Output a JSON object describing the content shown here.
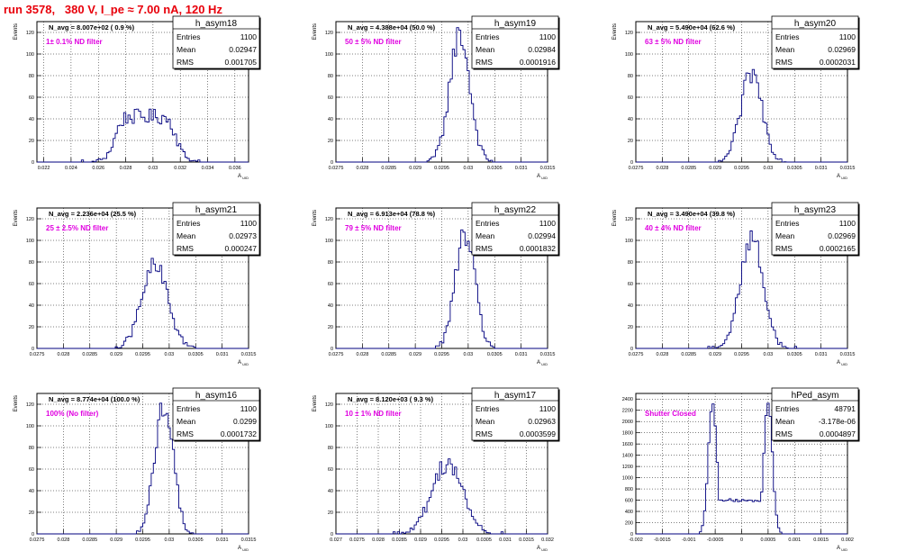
{
  "run_title": "run 3578,   380 V, I_pe ≈ 7.00 nA, 120 Hz",
  "colors": {
    "title": "#e8000b",
    "annotation": "#e000e0",
    "histogram": "#00007f",
    "grid": "#000000"
  },
  "chart_data": [
    {
      "type": "histogram",
      "title": "h_asym18",
      "ylabel": "Events",
      "xlabel": "A_UID",
      "xlim": [
        0.0215,
        0.037
      ],
      "ylim": [
        0,
        130
      ],
      "xticks": [
        0.022,
        0.024,
        0.026,
        0.028,
        0.03,
        0.032,
        0.034,
        0.036
      ],
      "xtick_labels": [
        "0.022",
        "0.024",
        "0.026",
        "0.028",
        "0.03",
        "0.032",
        "0.034",
        "0.036"
      ],
      "yticks": [
        0,
        20,
        40,
        60,
        80,
        100,
        120
      ],
      "grid": true,
      "stats": {
        "Entries": "1100",
        "Mean": "0.02947",
        "RMS": "0.001705"
      },
      "n_avg": "N_avg = 8.007e+02 ( 0.9 %)",
      "filter_label": "1± 0.1% ND filter",
      "shape": {
        "mean": 0.02947,
        "rms": 0.001705,
        "peak": 42,
        "kind": "flat"
      }
    },
    {
      "type": "histogram",
      "title": "h_asym19",
      "ylabel": "Events",
      "xlabel": "A_UID",
      "xlim": [
        0.0275,
        0.0315
      ],
      "ylim": [
        0,
        130
      ],
      "xticks": [
        0.0275,
        0.028,
        0.0285,
        0.029,
        0.0295,
        0.03,
        0.0305,
        0.031,
        0.0315
      ],
      "xtick_labels": [
        "0.0275",
        "0.028",
        "0.0285",
        "0.029",
        "0.0295",
        "0.03",
        "0.0305",
        "0.031",
        "0.0315"
      ],
      "yticks": [
        0,
        20,
        40,
        60,
        80,
        100,
        120
      ],
      "grid": true,
      "stats": {
        "Entries": "1100",
        "Mean": "0.02984",
        "RMS": "0.0001916"
      },
      "n_avg": "N_avg = 4.388e+04 (50.0 %)",
      "filter_label": "50 ± 5% ND filter",
      "shape": {
        "mean": 0.02984,
        "rms": 0.0001916,
        "peak": 118,
        "kind": "gauss"
      }
    },
    {
      "type": "histogram",
      "title": "h_asym20",
      "ylabel": "Events",
      "xlabel": "A_UID",
      "xlim": [
        0.0275,
        0.0315
      ],
      "ylim": [
        0,
        130
      ],
      "xticks": [
        0.0275,
        0.028,
        0.0285,
        0.029,
        0.0295,
        0.03,
        0.0305,
        0.031,
        0.0315
      ],
      "xtick_labels": [
        "0.0275",
        "0.028",
        "0.0285",
        "0.029",
        "0.0295",
        "0.03",
        "0.0305",
        "0.031",
        "0.0315"
      ],
      "yticks": [
        0,
        20,
        40,
        60,
        80,
        100,
        120
      ],
      "grid": true,
      "stats": {
        "Entries": "1100",
        "Mean": "0.02969",
        "RMS": "0.0002031"
      },
      "n_avg": "N_avg = 5.490e+04 (62.6 %)",
      "filter_label": "63 ± 5% ND filter",
      "shape": {
        "mean": 0.02969,
        "rms": 0.0002031,
        "peak": 82,
        "kind": "gauss"
      }
    },
    {
      "type": "histogram",
      "title": "h_asym21",
      "ylabel": "Events",
      "xlabel": "A_UID",
      "xlim": [
        0.0275,
        0.0315
      ],
      "ylim": [
        0,
        130
      ],
      "xticks": [
        0.0275,
        0.028,
        0.0285,
        0.029,
        0.0295,
        0.03,
        0.0305,
        0.031,
        0.0315
      ],
      "xtick_labels": [
        "0.0275",
        "0.028",
        "0.0285",
        "0.029",
        "0.0295",
        "0.03",
        "0.0305",
        "0.031",
        "0.0315"
      ],
      "yticks": [
        0,
        20,
        40,
        60,
        80,
        100,
        120
      ],
      "grid": true,
      "stats": {
        "Entries": "1100",
        "Mean": "0.02973",
        "RMS": "0.000247"
      },
      "n_avg": "N_avg = 2.236e+04 (25.5 %)",
      "filter_label": "25 ± 2.5% ND filter",
      "shape": {
        "mean": 0.02973,
        "rms": 0.000247,
        "peak": 76,
        "kind": "gauss"
      }
    },
    {
      "type": "histogram",
      "title": "h_asym22",
      "ylabel": "Events",
      "xlabel": "A_UID",
      "xlim": [
        0.0275,
        0.0315
      ],
      "ylim": [
        0,
        130
      ],
      "xticks": [
        0.0275,
        0.028,
        0.0285,
        0.029,
        0.0295,
        0.03,
        0.0305,
        0.031,
        0.0315
      ],
      "xtick_labels": [
        "0.0275",
        "0.028",
        "0.0285",
        "0.029",
        "0.0295",
        "0.03",
        "0.0305",
        "0.031",
        "0.0315"
      ],
      "yticks": [
        0,
        20,
        40,
        60,
        80,
        100,
        120
      ],
      "grid": true,
      "stats": {
        "Entries": "1100",
        "Mean": "0.02994",
        "RMS": "0.0001832"
      },
      "n_avg": "N_avg = 6.913e+04 (78.8 %)",
      "filter_label": "79 ± 5% ND filter",
      "shape": {
        "mean": 0.02994,
        "rms": 0.0001832,
        "peak": 106,
        "kind": "gauss"
      }
    },
    {
      "type": "histogram",
      "title": "h_asym23",
      "ylabel": "Events",
      "xlabel": "A_UID",
      "xlim": [
        0.0275,
        0.0315
      ],
      "ylim": [
        0,
        130
      ],
      "xticks": [
        0.0275,
        0.028,
        0.0285,
        0.029,
        0.0295,
        0.03,
        0.0305,
        0.031,
        0.0315
      ],
      "xtick_labels": [
        "0.0275",
        "0.028",
        "0.0285",
        "0.029",
        "0.0295",
        "0.03",
        "0.0305",
        "0.031",
        "0.0315"
      ],
      "yticks": [
        0,
        20,
        40,
        60,
        80,
        100,
        120
      ],
      "grid": true,
      "stats": {
        "Entries": "1100",
        "Mean": "0.02969",
        "RMS": "0.0002165"
      },
      "n_avg": "N_avg = 3.490e+04 (39.8 %)",
      "filter_label": "40 ± 4% ND filter",
      "shape": {
        "mean": 0.02969,
        "rms": 0.0002165,
        "peak": 103,
        "kind": "gauss"
      }
    },
    {
      "type": "histogram",
      "title": "h_asym16",
      "ylabel": "Events",
      "xlabel": "A_UID",
      "xlim": [
        0.0275,
        0.0315
      ],
      "ylim": [
        0,
        130
      ],
      "xticks": [
        0.0275,
        0.028,
        0.0285,
        0.029,
        0.0295,
        0.03,
        0.0305,
        0.031,
        0.0315
      ],
      "xtick_labels": [
        "0.0275",
        "0.028",
        "0.0285",
        "0.029",
        "0.0295",
        "0.03",
        "0.0305",
        "0.031",
        "0.0315"
      ],
      "yticks": [
        0,
        20,
        40,
        60,
        80,
        100,
        120
      ],
      "grid": true,
      "stats": {
        "Entries": "1100",
        "Mean": "0.0299",
        "RMS": "0.0001732"
      },
      "n_avg": "N_avg = 8.774e+04 (100.0 %)",
      "filter_label": "100% (No filter)",
      "shape": {
        "mean": 0.0299,
        "rms": 0.0001732,
        "peak": 120,
        "kind": "gauss"
      }
    },
    {
      "type": "histogram",
      "title": "h_asym17",
      "ylabel": "Events",
      "xlabel": "A_UID",
      "xlim": [
        0.027,
        0.032
      ],
      "ylim": [
        0,
        130
      ],
      "xticks": [
        0.027,
        0.0275,
        0.028,
        0.0285,
        0.029,
        0.0295,
        0.03,
        0.0305,
        0.031,
        0.0315,
        0.032
      ],
      "xtick_labels": [
        "0.027",
        "0.0275",
        "0.028",
        "0.0285",
        "0.029",
        "0.0295",
        "0.03",
        "0.0305",
        "0.031",
        "0.0315",
        "0.032"
      ],
      "yticks": [
        0,
        20,
        40,
        60,
        80,
        100,
        120
      ],
      "grid": true,
      "stats": {
        "Entries": "1100",
        "Mean": "0.02963",
        "RMS": "0.0003599"
      },
      "n_avg": "N_avg = 8.120e+03 ( 9.3 %)",
      "filter_label": "10 ± 1% ND filter",
      "shape": {
        "mean": 0.02963,
        "rms": 0.0003599,
        "peak": 66,
        "kind": "gauss"
      }
    },
    {
      "type": "histogram",
      "title": "hPed_asym",
      "ylabel": "",
      "xlabel": "A_UID",
      "xlim": [
        -0.002,
        0.002
      ],
      "ylim": [
        0,
        2500
      ],
      "xticks": [
        -0.002,
        -0.0015,
        -0.001,
        -0.0005,
        0,
        0.0005,
        0.001,
        0.0015,
        0.002
      ],
      "xtick_labels": [
        "-0.002",
        "-0.0015",
        "-0.001",
        "-0.0005",
        "0",
        "0.0005",
        "0.001",
        "0.0015",
        "0.002"
      ],
      "yticks": [
        0,
        200,
        400,
        600,
        800,
        1000,
        1200,
        1400,
        1600,
        1800,
        2000,
        2200,
        2400
      ],
      "grid": true,
      "stats": {
        "Entries": "48791",
        "Mean": "-3.178e-06",
        "RMS": "0.0004897"
      },
      "n_avg": "",
      "filter_label": "Shutter Closed",
      "shape": {
        "kind": "bimodal",
        "peaks": [
          -0.00055,
          0.0005
        ],
        "peak": 2350,
        "valley": 600
      }
    }
  ]
}
